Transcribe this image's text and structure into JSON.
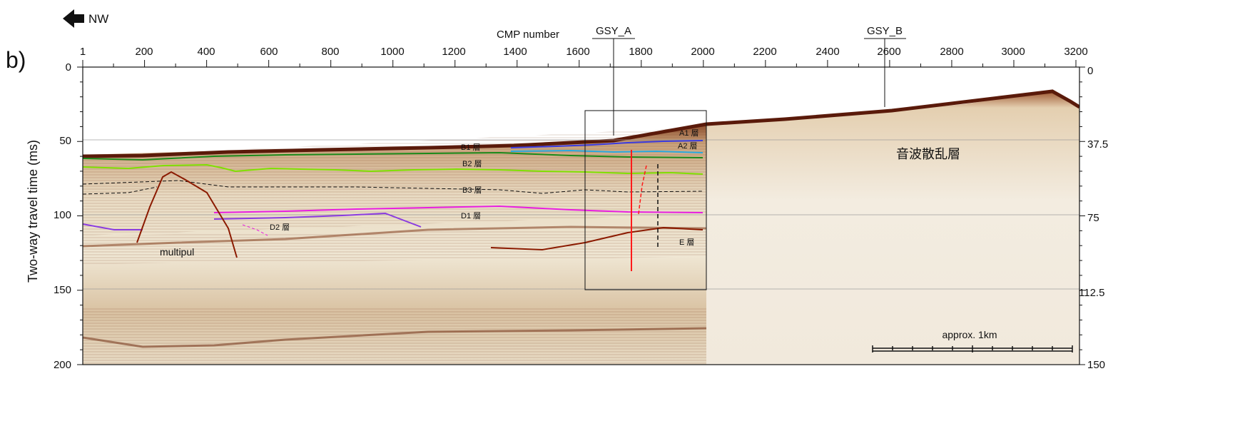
{
  "panel_label": "b)",
  "direction": {
    "label": "NW",
    "icon": "arrow-left-icon"
  },
  "x_axis": {
    "title": "CMP number",
    "ticks": [
      "1",
      "200",
      "400",
      "600",
      "800",
      "1000",
      "1200",
      "1400",
      "1600",
      "1800",
      "2000",
      "2200",
      "2400",
      "2600",
      "2800",
      "3000",
      "3200"
    ]
  },
  "y_axis_left": {
    "title": "Two-way travel time (ms)",
    "ticks": [
      "0",
      "50",
      "100",
      "150",
      "200"
    ]
  },
  "y_axis_right": {
    "ticks": [
      "0",
      "37.5",
      "75",
      "112.5",
      "150"
    ]
  },
  "boreholes": [
    {
      "name": "GSY_A"
    },
    {
      "name": "GSY_B"
    }
  ],
  "layers": {
    "A1": "A1 層",
    "A2": "A2 層",
    "B1": "B1 層",
    "B2": "B2 層",
    "B3": "B3 層",
    "D1": "D1 層",
    "D2": "D2 層",
    "E": "E 層"
  },
  "annotations": {
    "multiple": "multipul",
    "scatter_zone": "音波散乱層"
  },
  "scale_bar": {
    "label": "approx. 1km"
  },
  "colors": {
    "A1": "#3a3adf",
    "A2": "#29a9e0",
    "B1": "#1a8a1a",
    "B2": "#7fe000",
    "D1": "#e81ee0",
    "D2": "#8a3be0",
    "E": "#8b1a00",
    "fault": "#ff1a1a"
  }
}
